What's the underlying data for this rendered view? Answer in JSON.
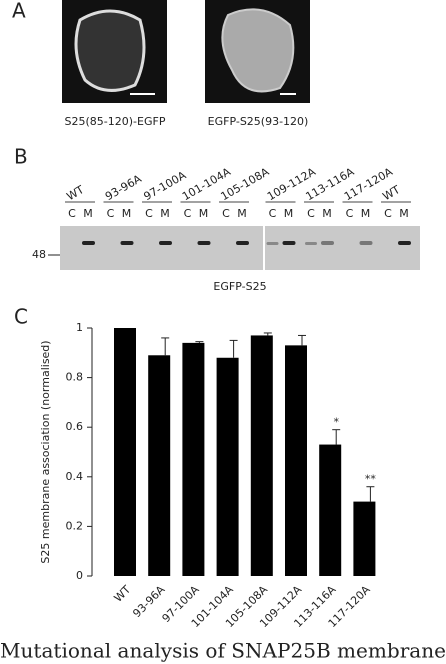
{
  "panels": {
    "A": {
      "label": "A",
      "captions": [
        "S25(85-120)-EGFP",
        "EGFP-S25(93-120)"
      ]
    },
    "B": {
      "label": "B",
      "lanes": [
        "WT",
        "93-96A",
        "97-100A",
        "101-104A",
        "105-108A",
        "109-112A",
        "113-116A",
        "117-120A",
        "WT"
      ],
      "fractions": [
        "C",
        "M"
      ],
      "marker": "48",
      "blot_label": "EGFP-S25"
    },
    "C": {
      "label": "C"
    }
  },
  "chart_data": {
    "type": "bar",
    "ylabel": "S25 membrane association (normalised)",
    "categories": [
      "WT",
      "93-96A",
      "97-100A",
      "101-104A",
      "105-108A",
      "109-112A",
      "113-116A",
      "117-120A"
    ],
    "values": [
      1.0,
      0.89,
      0.94,
      0.88,
      0.97,
      0.93,
      0.53,
      0.3
    ],
    "errors": [
      0,
      0.07,
      0.005,
      0.07,
      0.01,
      0.04,
      0.06,
      0.06
    ],
    "significance": {
      "113-116A": "*",
      "117-120A": "**"
    },
    "color": "#000000",
    "ylim": [
      0,
      1
    ],
    "yticks": [
      0,
      0.2,
      0.4,
      0.6,
      0.8,
      1
    ]
  },
  "caption": "Mutational analysis of SNAP25B membrane"
}
